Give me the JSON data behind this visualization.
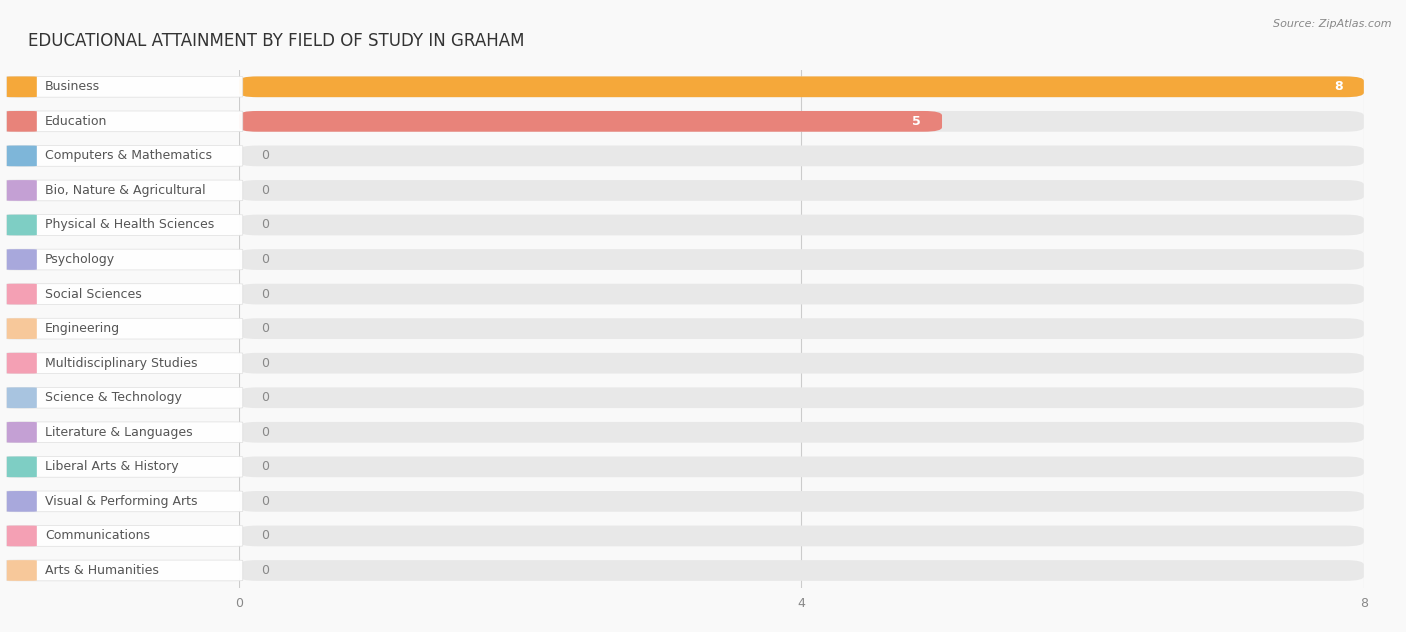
{
  "title": "EDUCATIONAL ATTAINMENT BY FIELD OF STUDY IN GRAHAM",
  "source": "Source: ZipAtlas.com",
  "categories": [
    "Business",
    "Education",
    "Computers & Mathematics",
    "Bio, Nature & Agricultural",
    "Physical & Health Sciences",
    "Psychology",
    "Social Sciences",
    "Engineering",
    "Multidisciplinary Studies",
    "Science & Technology",
    "Literature & Languages",
    "Liberal Arts & History",
    "Visual & Performing Arts",
    "Communications",
    "Arts & Humanities"
  ],
  "values": [
    8,
    5,
    0,
    0,
    0,
    0,
    0,
    0,
    0,
    0,
    0,
    0,
    0,
    0,
    0
  ],
  "bar_colors": [
    "#F5A83A",
    "#E8837A",
    "#7EB6D9",
    "#C4A0D4",
    "#7ECEC4",
    "#A8A8DC",
    "#F4A0B4",
    "#F7C89A",
    "#F4A0B4",
    "#A8C4E0",
    "#C4A0D4",
    "#7ECEC4",
    "#A8A8DC",
    "#F4A0B4",
    "#F7C89A"
  ],
  "xlim": [
    0,
    8
  ],
  "xticks": [
    0,
    4,
    8
  ],
  "background_color": "#f9f9f9",
  "bar_background_color": "#e8e8e8",
  "title_fontsize": 12,
  "label_fontsize": 9,
  "value_fontsize": 9
}
